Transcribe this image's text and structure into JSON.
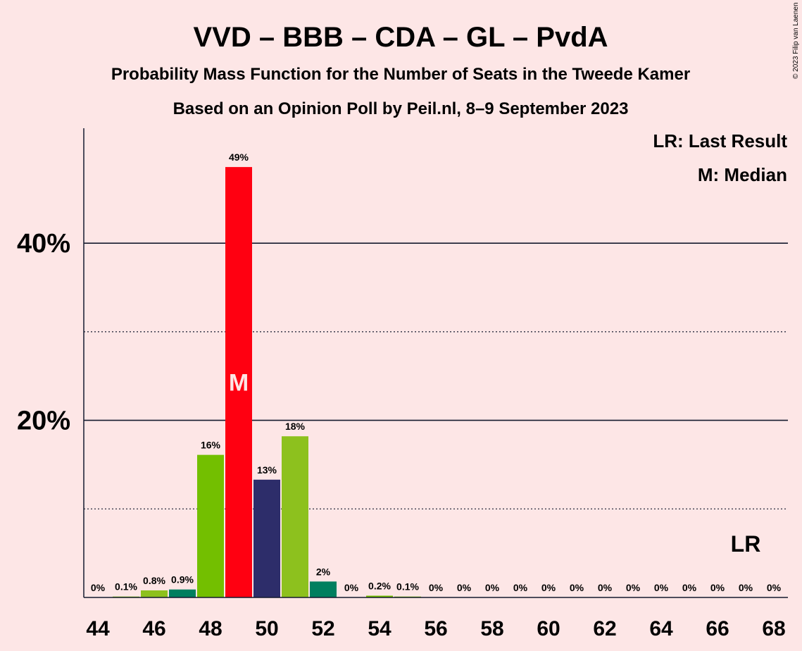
{
  "chart_data": {
    "type": "bar",
    "title": "VVD – BBB – CDA – GL – PvdA",
    "subtitle": "Probability Mass Function for the Number of Seats in the Tweede Kamer",
    "subtitle2": "Based on an Opinion Poll by Peil.nl, 8–9 September 2023",
    "copyright": "© 2023 Filip van Laenen",
    "legend": {
      "last_result": "LR: Last Result",
      "median": "M: Median",
      "placement": "top-right"
    },
    "x": [
      44,
      45,
      46,
      47,
      48,
      49,
      50,
      51,
      52,
      53,
      54,
      55,
      56,
      57,
      58,
      59,
      60,
      61,
      62,
      63,
      64,
      65,
      66,
      67,
      68
    ],
    "values": [
      0,
      0.1,
      0.8,
      0.9,
      16.1,
      48.6,
      13.3,
      18.2,
      1.8,
      0,
      0.2,
      0.1,
      0,
      0,
      0,
      0,
      0,
      0,
      0,
      0,
      0,
      0,
      0,
      0,
      0
    ],
    "labels": [
      "0%",
      "0.1%",
      "0.8%",
      "0.9%",
      "16%",
      "49%",
      "13%",
      "18%",
      "2%",
      "0%",
      "0.2%",
      "0.1%",
      "0%",
      "0%",
      "0%",
      "0%",
      "0%",
      "0%",
      "0%",
      "0%",
      "0%",
      "0%",
      "0%",
      "0%",
      "0%"
    ],
    "colors": [
      "#73bf00",
      "#73bf00",
      "#8dc11e",
      "#007f5f",
      "#73bf00",
      "#ff0011",
      "#2d2d6a",
      "#8dc11e",
      "#007f5f",
      "#73bf00",
      "#73bf00",
      "#73bf00",
      "#73bf00",
      "#73bf00",
      "#73bf00",
      "#73bf00",
      "#73bf00",
      "#73bf00",
      "#73bf00",
      "#73bf00",
      "#73bf00",
      "#73bf00",
      "#73bf00",
      "#73bf00",
      "#73bf00"
    ],
    "median": 49,
    "median_marker": "M",
    "last_result": 67,
    "last_result_marker": "LR",
    "ylim": [
      0,
      52
    ],
    "y_ticks": [
      20,
      40
    ],
    "y_tick_labels": [
      "20%",
      "40%"
    ],
    "y_minor_gridlines": [
      10,
      30
    ],
    "x_ticks": [
      44,
      46,
      48,
      50,
      52,
      54,
      56,
      58,
      60,
      62,
      64,
      66,
      68
    ],
    "grid": true,
    "xlabel": "",
    "ylabel": ""
  }
}
